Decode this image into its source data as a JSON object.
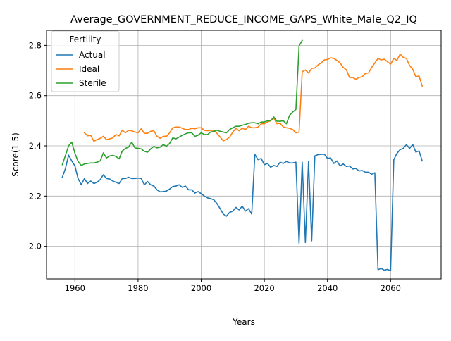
{
  "chart_data": {
    "type": "line",
    "title": "Average_GOVERNMENT_REDUCE_INCOME_GAPS_White_Male_Q2_IQ",
    "xlabel": "Years",
    "ylabel": "Score(1-5)",
    "xlim": [
      1951,
      2076
    ],
    "ylim": [
      1.87,
      2.86
    ],
    "xticks": [
      1960,
      1980,
      2000,
      2020,
      2040,
      2060
    ],
    "yticks": [
      2.0,
      2.2,
      2.4,
      2.6,
      2.8
    ],
    "xtick_labels": [
      "1960",
      "1980",
      "2000",
      "2020",
      "2040",
      "2060"
    ],
    "ytick_labels": [
      "2.0",
      "2.2",
      "2.4",
      "2.6",
      "2.8"
    ],
    "grid": true,
    "legend": {
      "title": "Fertility",
      "placement": "upper left"
    },
    "series": [
      {
        "name": "Actual",
        "color": "#1f77b4",
        "x": [
          1956,
          1957,
          1958,
          1959,
          1960,
          1961,
          1962,
          1963,
          1964,
          1965,
          1966,
          1967,
          1968,
          1969,
          1970,
          1971,
          1972,
          1973,
          1974,
          1975,
          1976,
          1977,
          1978,
          1979,
          1980,
          1981,
          1982,
          1983,
          1984,
          1985,
          1986,
          1987,
          1988,
          1989,
          1990,
          1991,
          1992,
          1993,
          1994,
          1995,
          1996,
          1997,
          1998,
          1999,
          2000,
          2001,
          2002,
          2003,
          2004,
          2005,
          2006,
          2007,
          2008,
          2009,
          2010,
          2011,
          2012,
          2013,
          2014,
          2015,
          2016,
          2017,
          2018,
          2019,
          2020,
          2021,
          2022,
          2023,
          2024,
          2025,
          2026,
          2027,
          2028,
          2029,
          2030,
          2031,
          2032,
          2033,
          2034,
          2035,
          2036,
          2037,
          2038,
          2039,
          2040,
          2041,
          2042,
          2043,
          2044,
          2045,
          2046,
          2047,
          2048,
          2049,
          2050,
          2051,
          2052,
          2053,
          2054,
          2055,
          2056,
          2057,
          2058,
          2059,
          2060,
          2061,
          2062,
          2063,
          2064,
          2065,
          2066,
          2067,
          2068,
          2069,
          2070
        ],
        "values": [
          2.275,
          2.31,
          2.363,
          2.34,
          2.32,
          2.27,
          2.245,
          2.27,
          2.25,
          2.26,
          2.25,
          2.255,
          2.265,
          2.285,
          2.27,
          2.268,
          2.26,
          2.255,
          2.25,
          2.27,
          2.27,
          2.275,
          2.27,
          2.27,
          2.272,
          2.27,
          2.245,
          2.258,
          2.245,
          2.24,
          2.225,
          2.217,
          2.218,
          2.22,
          2.228,
          2.238,
          2.24,
          2.245,
          2.235,
          2.24,
          2.225,
          2.225,
          2.212,
          2.218,
          2.21,
          2.2,
          2.193,
          2.19,
          2.185,
          2.17,
          2.15,
          2.128,
          2.12,
          2.135,
          2.14,
          2.155,
          2.145,
          2.16,
          2.14,
          2.15,
          2.128,
          2.366,
          2.345,
          2.35,
          2.325,
          2.33,
          2.315,
          2.322,
          2.318,
          2.335,
          2.33,
          2.338,
          2.332,
          2.332,
          2.335,
          2.012,
          2.335,
          2.015,
          2.338,
          2.022,
          2.36,
          2.365,
          2.366,
          2.367,
          2.35,
          2.352,
          2.33,
          2.34,
          2.32,
          2.328,
          2.318,
          2.32,
          2.308,
          2.31,
          2.3,
          2.302,
          2.295,
          2.295,
          2.287,
          2.293,
          1.907,
          1.912,
          1.905,
          1.908,
          1.903,
          2.345,
          2.37,
          2.385,
          2.39,
          2.405,
          2.39,
          2.405,
          2.375,
          2.38,
          2.34
        ]
      },
      {
        "name": "Ideal",
        "color": "#ff7f0e",
        "x": [
          1963,
          1964,
          1965,
          1966,
          1967,
          1968,
          1969,
          1970,
          1971,
          1972,
          1973,
          1974,
          1975,
          1976,
          1977,
          1978,
          1979,
          1980,
          1981,
          1982,
          1983,
          1984,
          1985,
          1986,
          1987,
          1988,
          1989,
          1990,
          1991,
          1992,
          1993,
          1994,
          1995,
          1996,
          1997,
          1998,
          1999,
          2000,
          2001,
          2002,
          2003,
          2004,
          2005,
          2006,
          2007,
          2008,
          2009,
          2010,
          2011,
          2012,
          2013,
          2014,
          2015,
          2016,
          2017,
          2018,
          2019,
          2020,
          2021,
          2022,
          2023,
          2024,
          2025,
          2026,
          2027,
          2028,
          2029,
          2030,
          2031,
          2032,
          2033,
          2034,
          2035,
          2036,
          2037,
          2038,
          2039,
          2040,
          2041,
          2042,
          2043,
          2044,
          2045,
          2046,
          2047,
          2048,
          2049,
          2050,
          2051,
          2052,
          2053,
          2054,
          2055,
          2056,
          2057,
          2058,
          2059,
          2060,
          2061,
          2062,
          2063,
          2064,
          2065,
          2066,
          2067,
          2068,
          2069,
          2070
        ],
        "values": [
          2.452,
          2.44,
          2.442,
          2.418,
          2.425,
          2.43,
          2.438,
          2.425,
          2.428,
          2.432,
          2.445,
          2.44,
          2.462,
          2.452,
          2.462,
          2.46,
          2.455,
          2.452,
          2.468,
          2.45,
          2.45,
          2.458,
          2.46,
          2.438,
          2.43,
          2.438,
          2.438,
          2.452,
          2.472,
          2.475,
          2.475,
          2.47,
          2.465,
          2.465,
          2.47,
          2.468,
          2.472,
          2.472,
          2.462,
          2.46,
          2.462,
          2.462,
          2.45,
          2.435,
          2.42,
          2.425,
          2.435,
          2.455,
          2.47,
          2.46,
          2.47,
          2.465,
          2.478,
          2.472,
          2.472,
          2.475,
          2.488,
          2.488,
          2.495,
          2.5,
          2.51,
          2.488,
          2.49,
          2.475,
          2.472,
          2.47,
          2.465,
          2.452,
          2.455,
          2.695,
          2.702,
          2.69,
          2.708,
          2.71,
          2.722,
          2.73,
          2.742,
          2.744,
          2.75,
          2.748,
          2.74,
          2.73,
          2.712,
          2.702,
          2.672,
          2.672,
          2.665,
          2.672,
          2.675,
          2.688,
          2.69,
          2.712,
          2.73,
          2.748,
          2.742,
          2.745,
          2.735,
          2.725,
          2.748,
          2.74,
          2.765,
          2.752,
          2.748,
          2.72,
          2.705,
          2.675,
          2.678,
          2.638
        ]
      },
      {
        "name": "Sterile",
        "color": "#2ca02c",
        "x": [
          1956,
          1957,
          1958,
          1959,
          1960,
          1961,
          1962,
          1963,
          1964,
          1965,
          1966,
          1967,
          1968,
          1969,
          1970,
          1971,
          1972,
          1973,
          1974,
          1975,
          1976,
          1977,
          1978,
          1979,
          1980,
          1981,
          1982,
          1983,
          1984,
          1985,
          1986,
          1987,
          1988,
          1989,
          1990,
          1991,
          1992,
          1993,
          1994,
          1995,
          1996,
          1997,
          1998,
          1999,
          2000,
          2001,
          2002,
          2003,
          2004,
          2005,
          2006,
          2007,
          2008,
          2009,
          2010,
          2011,
          2012,
          2013,
          2014,
          2015,
          2016,
          2017,
          2018,
          2019,
          2020,
          2021,
          2022,
          2023,
          2024,
          2025,
          2026,
          2027,
          2028,
          2029,
          2030,
          2031,
          2032
        ],
        "values": [
          2.325,
          2.362,
          2.4,
          2.415,
          2.37,
          2.338,
          2.322,
          2.328,
          2.33,
          2.332,
          2.332,
          2.335,
          2.34,
          2.372,
          2.352,
          2.36,
          2.362,
          2.358,
          2.348,
          2.38,
          2.39,
          2.395,
          2.415,
          2.392,
          2.39,
          2.388,
          2.378,
          2.375,
          2.388,
          2.398,
          2.392,
          2.395,
          2.405,
          2.398,
          2.41,
          2.432,
          2.428,
          2.435,
          2.442,
          2.448,
          2.452,
          2.452,
          2.438,
          2.442,
          2.452,
          2.445,
          2.445,
          2.455,
          2.458,
          2.462,
          2.458,
          2.455,
          2.452,
          2.465,
          2.472,
          2.478,
          2.478,
          2.482,
          2.485,
          2.49,
          2.492,
          2.492,
          2.488,
          2.495,
          2.495,
          2.5,
          2.5,
          2.515,
          2.498,
          2.498,
          2.5,
          2.488,
          2.522,
          2.535,
          2.545,
          2.798,
          2.82
        ]
      }
    ]
  }
}
